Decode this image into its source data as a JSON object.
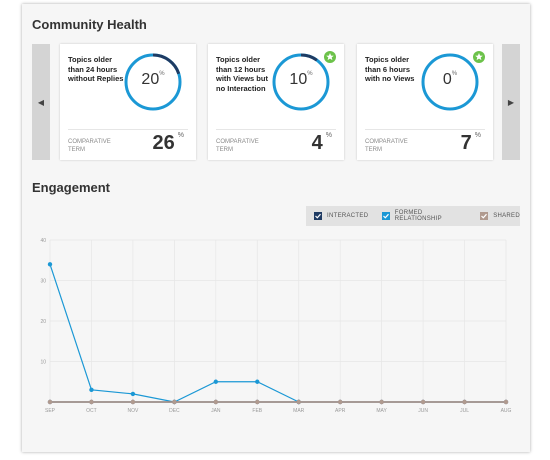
{
  "community_health": {
    "title": "Community Health",
    "cards": [
      {
        "label": "Topics older than 24 hours without Replies",
        "value": "20",
        "percent_symbol": "%",
        "ring_fraction": 0.2,
        "comparative_label": "Comparative Term",
        "comparative_value": "26",
        "comparative_symbol": "%",
        "badge": false
      },
      {
        "label": "Topics older than 12 hours with Views but no Interaction",
        "value": "10",
        "percent_symbol": "%",
        "ring_fraction": 0.1,
        "comparative_label": "Comparative Term",
        "comparative_value": "4",
        "comparative_symbol": "%",
        "badge": true
      },
      {
        "label": "Topics older than 6 hours with no Views",
        "value": "0",
        "percent_symbol": "%",
        "ring_fraction": 0.0,
        "comparative_label": "Comparative Term",
        "comparative_value": "7",
        "comparative_symbol": "%",
        "badge": true
      }
    ],
    "prev_arrow": "◀",
    "next_arrow": "▶"
  },
  "engagement": {
    "title": "Engagement",
    "legend": [
      {
        "label": "Interacted",
        "color": "#1f3b63"
      },
      {
        "label": "Formed Relationship",
        "color": "#1b98d5"
      },
      {
        "label": "Shared",
        "color": "#b09a8f"
      }
    ]
  },
  "colors": {
    "ring_track": "#1b98d5",
    "ring_fill": "#1f3b63",
    "badge": "#6cc24a",
    "grid": "#e6e6e6",
    "shared_line": "#b09a8f"
  },
  "chart_data": {
    "type": "line",
    "categories": [
      "SEP",
      "OCT",
      "NOV",
      "DEC",
      "JAN",
      "FEB",
      "MAR",
      "APR",
      "MAY",
      "JUN",
      "JUL",
      "AUG"
    ],
    "y_ticks": [
      "40",
      "30",
      "20",
      "10"
    ],
    "ylim": [
      0,
      40
    ],
    "grid": true,
    "series": [
      {
        "name": "Interacted",
        "color": "#1f3b63",
        "values": [
          0,
          0,
          0,
          0,
          0,
          0,
          0,
          0,
          0,
          0,
          0,
          0
        ]
      },
      {
        "name": "Formed Relationship",
        "color": "#1b98d5",
        "values": [
          34,
          3,
          2,
          0,
          5,
          5,
          0,
          null,
          null,
          null,
          null,
          null
        ]
      },
      {
        "name": "Shared",
        "color": "#b09a8f",
        "values": [
          0,
          0,
          0,
          0,
          0,
          0,
          0,
          0,
          0,
          0,
          0,
          0
        ]
      }
    ]
  }
}
